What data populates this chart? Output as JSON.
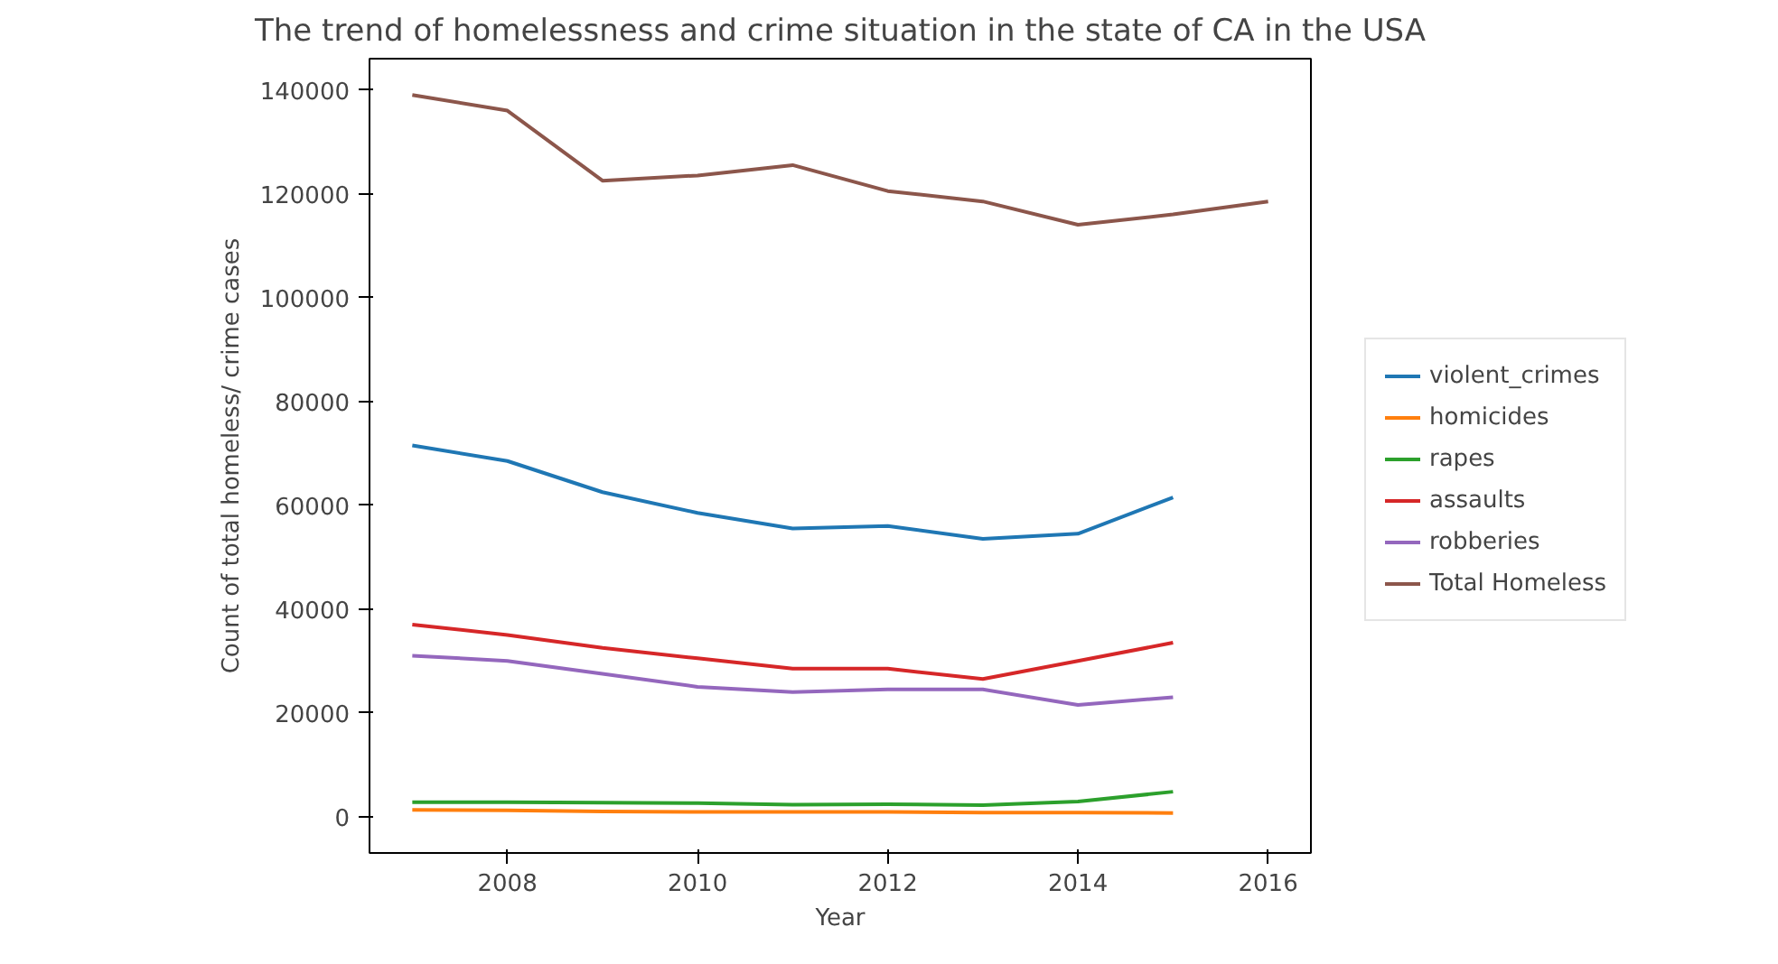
{
  "chart_data": {
    "type": "line",
    "title": "The trend of homelessness and crime situation in the state of CA in the USA",
    "xlabel": "Year",
    "ylabel": "Count of total homeless/ crime cases",
    "x": [
      2007,
      2008,
      2009,
      2010,
      2011,
      2012,
      2013,
      2014,
      2015
    ],
    "series": [
      {
        "name": "violent_crimes",
        "color": "#1f77b4",
        "values": [
          71500,
          68500,
          62500,
          58500,
          55500,
          56000,
          53500,
          54500,
          61500
        ]
      },
      {
        "name": "homicides",
        "color": "#ff7f0e",
        "values": [
          1300,
          1200,
          1000,
          900,
          900,
          900,
          800,
          800,
          700
        ]
      },
      {
        "name": "rapes",
        "color": "#2ca02c",
        "values": [
          2800,
          2800,
          2700,
          2600,
          2300,
          2400,
          2200,
          2900,
          4800
        ]
      },
      {
        "name": "assaults",
        "color": "#d62728",
        "values": [
          37000,
          35000,
          32500,
          30500,
          28500,
          28500,
          26500,
          30000,
          33500
        ]
      },
      {
        "name": "robberies",
        "color": "#9467bd",
        "values": [
          31000,
          30000,
          27500,
          25000,
          24000,
          24500,
          24500,
          21500,
          23000
        ]
      },
      {
        "name": "Total Homeless",
        "color": "#8c564b",
        "x": [
          2007,
          2008,
          2009,
          2010,
          2011,
          2012,
          2013,
          2014,
          2015,
          2016
        ],
        "values": [
          139000,
          136000,
          122500,
          123500,
          125500,
          120500,
          118500,
          114000,
          116000,
          118500
        ]
      }
    ],
    "xlim": [
      2006.55,
      2016.45
    ],
    "ylim": [
      -7000,
      146000
    ],
    "xticks": [
      2008,
      2010,
      2012,
      2014,
      2016
    ],
    "yticks": [
      0,
      20000,
      40000,
      60000,
      80000,
      100000,
      120000,
      140000
    ],
    "legend": "right",
    "grid": false
  }
}
